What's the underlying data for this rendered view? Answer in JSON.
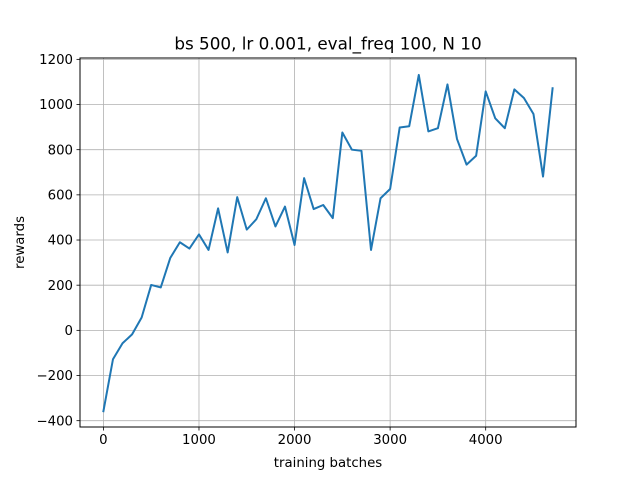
{
  "chart_data": {
    "type": "line",
    "title": "bs 500, lr 0.001, eval_freq 100, N 10",
    "xlabel": "training batches",
    "ylabel": "rewards",
    "xlim": [
      -245,
      4945
    ],
    "ylim": [
      -428,
      1206
    ],
    "xticks": [
      0,
      1000,
      2000,
      3000,
      4000
    ],
    "yticks": [
      -400,
      -200,
      0,
      200,
      400,
      600,
      800,
      1000,
      1200
    ],
    "xtick_labels": [
      "0",
      "1000",
      "2000",
      "3000",
      "4000"
    ],
    "ytick_labels": [
      "−400",
      "−200",
      "0",
      "200",
      "400",
      "600",
      "800",
      "1000",
      "1200"
    ],
    "grid": true,
    "line_color": "#1f77b4",
    "series": [
      {
        "x": [
          0,
          100,
          200,
          300,
          400,
          500,
          600,
          700,
          800,
          900,
          1000,
          1100,
          1200,
          1300,
          1400,
          1500,
          1600,
          1700,
          1800,
          1900,
          2000,
          2100,
          2200,
          2300,
          2400,
          2500,
          2600,
          2700,
          2800,
          2900,
          3000,
          3100,
          3200,
          3300,
          3400,
          3500,
          3600,
          3700,
          3800,
          3900,
          4000,
          4100,
          4200,
          4300,
          4400,
          4500,
          4600,
          4700
        ],
        "values": [
          -358,
          -128,
          -57,
          -18,
          57,
          201,
          190,
          321,
          390,
          362,
          425,
          356,
          540,
          345,
          590,
          446,
          492,
          585,
          460,
          548,
          378,
          674,
          537,
          555,
          497,
          876,
          800,
          795,
          356,
          585,
          626,
          898,
          904,
          1131,
          881,
          895,
          1089,
          847,
          734,
          773,
          1058,
          939,
          895,
          1067,
          1029,
          958,
          681,
          1072
        ]
      }
    ]
  }
}
